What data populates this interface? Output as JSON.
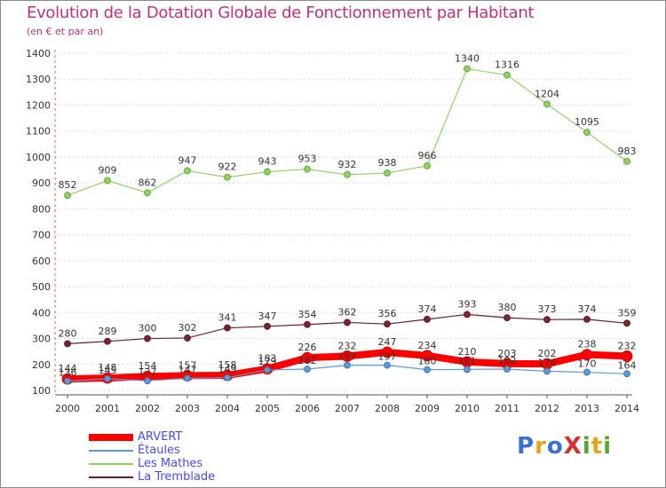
{
  "title": "Evolution de la Dotation Globale de Fonctionnement par Habitant",
  "subtitle": "(en € et par an)",
  "logo": {
    "text": "ProXiti",
    "letters": [
      "P",
      "r",
      "o",
      "X",
      "i",
      "t",
      "i"
    ],
    "colors": [
      "#3b6fd4",
      "#e8a317",
      "#3b6fd4",
      "#d6302f",
      "#5aa532",
      "#e8a317",
      "#5aa532"
    ]
  },
  "chart_data": {
    "type": "line",
    "title": "Evolution de la Dotation Globale de Fonctionnement par Habitant",
    "subtitle": "(en € et par an)",
    "xlabel": "",
    "ylabel": "",
    "x": [
      "2000",
      "2001",
      "2002",
      "2003",
      "2004",
      "2005",
      "2006",
      "2007",
      "2008",
      "2009",
      "2010",
      "2011",
      "2012",
      "2013",
      "2014"
    ],
    "ylim": [
      100,
      1400
    ],
    "yticks": [
      100,
      200,
      300,
      400,
      500,
      600,
      700,
      800,
      900,
      1000,
      1100,
      1200,
      1300,
      1400
    ],
    "grid": "horizontal dashed",
    "legend_position": "bottom-left",
    "series": [
      {
        "name": "ARVERT",
        "color": "#ff0000",
        "values": [
          144,
          148,
          154,
          157,
          158,
          183,
          226,
          232,
          247,
          234,
          210,
          203,
          202,
          238,
          232
        ]
      },
      {
        "name": "Étaules",
        "color": "#5b9bd5",
        "values": [
          136,
          145,
          137,
          147,
          149,
          179,
          182,
          197,
          197,
          180,
          181,
          182,
          174,
          170,
          164
        ]
      },
      {
        "name": "Les Mathes",
        "color": "#8ed25f",
        "values": [
          852,
          909,
          862,
          947,
          922,
          943,
          953,
          932,
          938,
          966,
          1340,
          1316,
          1204,
          1095,
          983
        ]
      },
      {
        "name": "La Tremblade",
        "color": "#6e1c25",
        "values": [
          280,
          289,
          300,
          302,
          341,
          347,
          354,
          362,
          356,
          374,
          393,
          380,
          373,
          374,
          359
        ]
      }
    ]
  }
}
